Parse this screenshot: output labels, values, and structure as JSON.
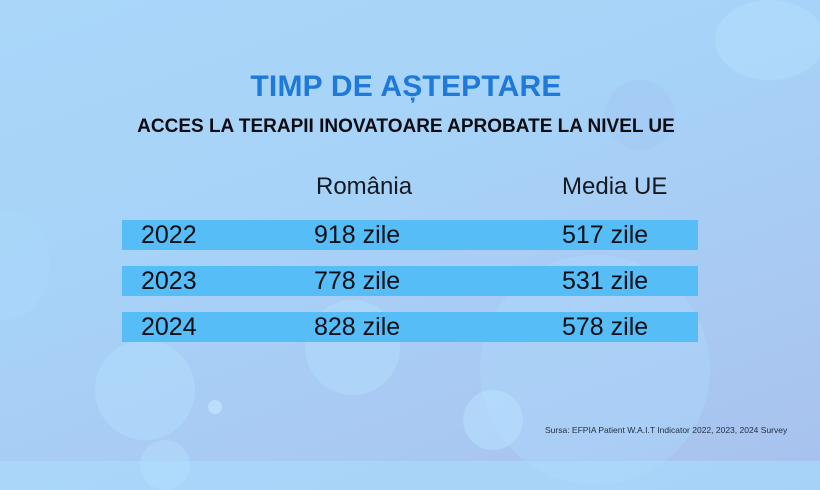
{
  "header": {
    "title": "TIMP DE AȘTEPTARE",
    "subtitle": "ACCES LA TERAPII INOVATOARE APROBATE LA NIVEL UE"
  },
  "table": {
    "columns": [
      "",
      "România",
      "Media UE"
    ],
    "rows": [
      {
        "year": "2022",
        "romania": "918 zile",
        "eu_average": "517 zile"
      },
      {
        "year": "2023",
        "romania": "778 zile",
        "eu_average": "531 zile"
      },
      {
        "year": "2024",
        "romania": "828 zile",
        "eu_average": "578 zile"
      }
    ]
  },
  "footer": {
    "source": "Sursa: EFPIA Patient W.A.I.T  Indicator 2022, 2023,  2024 Survey"
  },
  "colors": {
    "title": "#1e79d9",
    "row_band": "#56bdf6",
    "background": "#a9d6f9"
  }
}
